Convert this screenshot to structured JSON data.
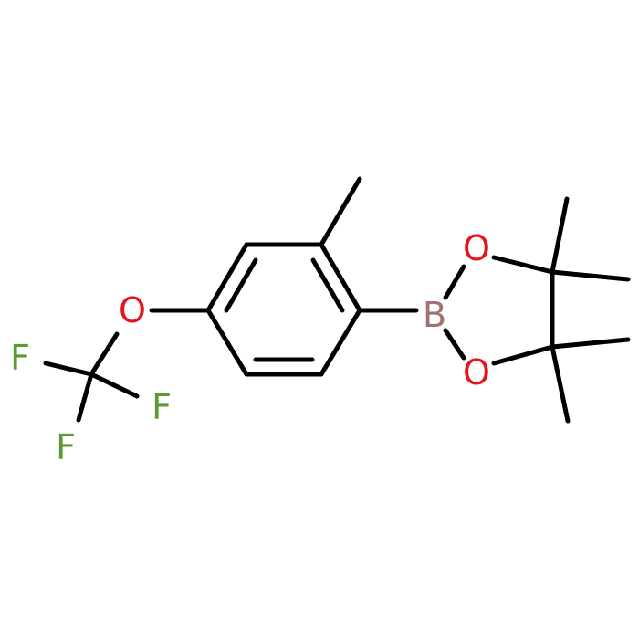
{
  "atoms": [
    {
      "label": "O"
    },
    {
      "label": "F"
    },
    {
      "label": "F"
    },
    {
      "label": "F"
    },
    {
      "label": "B"
    },
    {
      "label": "O"
    },
    {
      "label": "O"
    }
  ]
}
